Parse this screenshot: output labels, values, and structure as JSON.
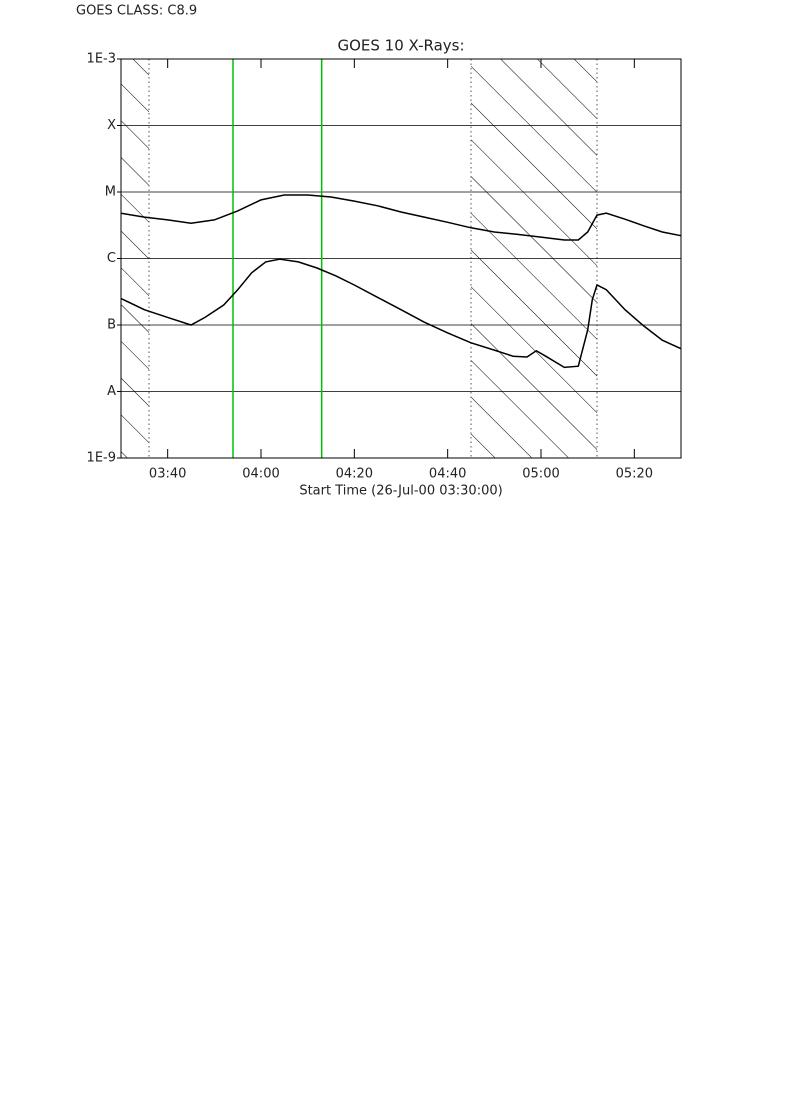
{
  "header": "GOES CLASS: C8.9",
  "chart_data": {
    "type": "line",
    "title": "GOES 10 X-Rays:",
    "x_label": "Start Time (26-Jul-00 03:30:00)",
    "log_y": true,
    "grid": true,
    "xlim": [
      "03:30",
      "05:30"
    ],
    "xticks": [
      "03:40",
      "04:00",
      "04:20",
      "04:40",
      "05:00",
      "05:20"
    ],
    "ylim": [
      1e-09,
      0.001
    ],
    "yticks": [
      {
        "value": 1e-09,
        "label": "1E-9"
      },
      {
        "value": 1e-08,
        "label": "A"
      },
      {
        "value": 1e-07,
        "label": "B"
      },
      {
        "value": 1e-06,
        "label": "C"
      },
      {
        "value": 1e-05,
        "label": "M"
      },
      {
        "value": 0.0001,
        "label": "X"
      },
      {
        "value": 0.001,
        "label": "1E-3"
      }
    ],
    "shaded_intervals": [
      [
        "03:30",
        "03:36"
      ],
      [
        "04:45",
        "05:12"
      ]
    ],
    "markers": {
      "color": "#00c000",
      "x": [
        "03:54",
        "04:13"
      ]
    },
    "series": [
      {
        "color": "#000000",
        "x": [
          "03:30",
          "03:35",
          "03:40",
          "03:45",
          "03:50",
          "03:55",
          "04:00",
          "04:05",
          "04:10",
          "04:15",
          "04:20",
          "04:25",
          "04:30",
          "04:35",
          "04:40",
          "04:45",
          "04:50",
          "04:55",
          "05:00",
          "05:05",
          "05:08",
          "05:10",
          "05:12",
          "05:14",
          "05:18",
          "05:22",
          "05:26",
          "05:30"
        ],
        "values": [
          4.8e-06,
          4.2e-06,
          3.8e-06,
          3.4e-06,
          3.8e-06,
          5.2e-06,
          7.6e-06,
          9e-06,
          9e-06,
          8.4e-06,
          7.3e-06,
          6.2e-06,
          5e-06,
          4.2e-06,
          3.5e-06,
          2.9e-06,
          2.5e-06,
          2.3e-06,
          2.1e-06,
          1.9e-06,
          1.9e-06,
          2.5e-06,
          4.5e-06,
          4.8e-06,
          3.9e-06,
          3.1e-06,
          2.5e-06,
          2.2e-06
        ]
      },
      {
        "color": "#000000",
        "x": [
          "03:30",
          "03:35",
          "03:40",
          "03:45",
          "03:48",
          "03:52",
          "03:55",
          "03:58",
          "04:01",
          "04:04",
          "04:08",
          "04:12",
          "04:16",
          "04:20",
          "04:25",
          "04:30",
          "04:35",
          "04:40",
          "04:45",
          "04:50",
          "04:54",
          "04:57",
          "04:59",
          "05:01",
          "05:05",
          "05:08",
          "05:10",
          "05:11",
          "05:12",
          "05:14",
          "05:18",
          "05:22",
          "05:26",
          "05:30"
        ],
        "values": [
          2.5e-07,
          1.7e-07,
          1.3e-07,
          1e-07,
          1.3e-07,
          2e-07,
          3.4e-07,
          6.1e-07,
          8.9e-07,
          9.8e-07,
          8.9e-07,
          7.2e-07,
          5.5e-07,
          4e-07,
          2.6e-07,
          1.7e-07,
          1.1e-07,
          7.6e-08,
          5.4e-08,
          4.2e-08,
          3.4e-08,
          3.3e-08,
          4.1e-08,
          3.4e-08,
          2.3e-08,
          2.4e-08,
          8.4e-08,
          2.4e-07,
          4e-07,
          3.4e-07,
          1.7e-07,
          9.7e-08,
          5.9e-08,
          4.4e-08
        ]
      }
    ]
  }
}
